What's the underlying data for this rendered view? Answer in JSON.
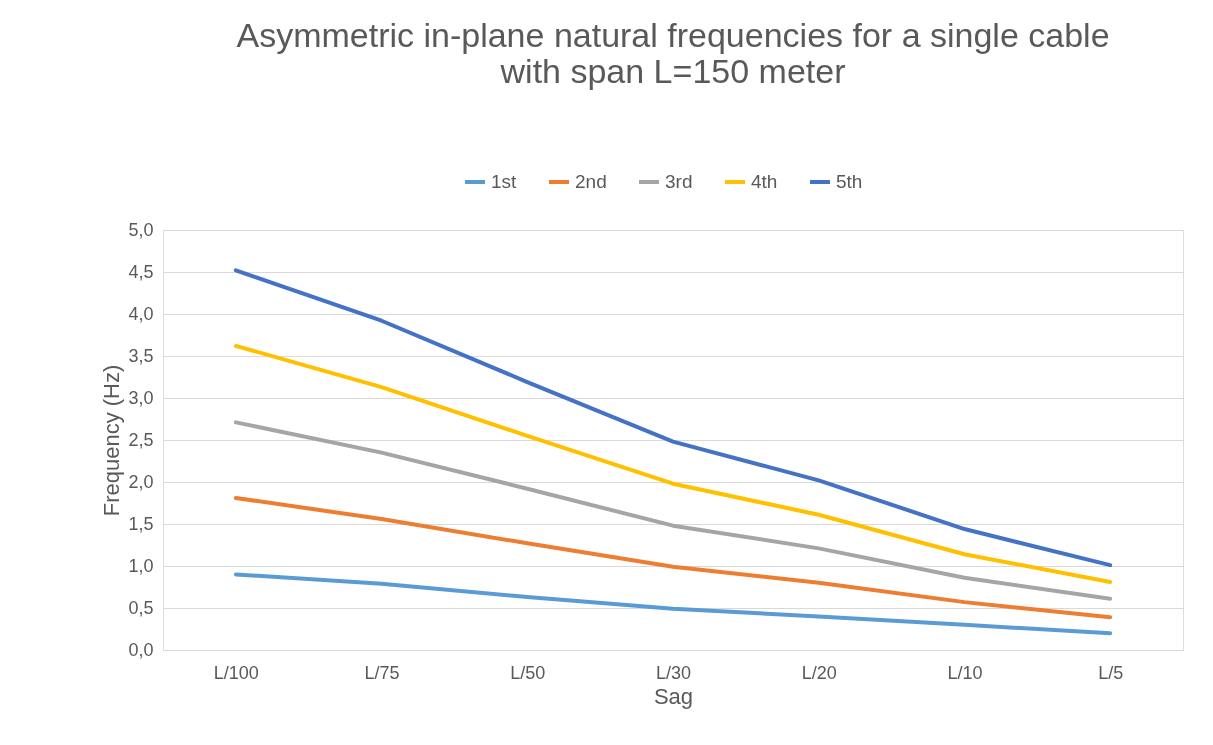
{
  "chart_data": {
    "type": "line",
    "title": "Asymmetric in-plane natural frequencies for a single cable\nwith span L=150 meter",
    "xlabel": "Sag",
    "ylabel": "Frequency (Hz)",
    "categories": [
      "L/100",
      "L/75",
      "L/50",
      "L/30",
      "L/20",
      "L/10",
      "L/5"
    ],
    "series": [
      {
        "name": "1st",
        "color": "#5b9bd5",
        "values": [
          0.9,
          0.79,
          0.63,
          0.49,
          0.4,
          0.3,
          0.2
        ]
      },
      {
        "name": "2nd",
        "color": "#ed7d31",
        "values": [
          1.81,
          1.56,
          1.27,
          0.99,
          0.8,
          0.57,
          0.39
        ]
      },
      {
        "name": "3rd",
        "color": "#a5a5a5",
        "values": [
          2.71,
          2.35,
          1.92,
          1.48,
          1.21,
          0.86,
          0.61
        ]
      },
      {
        "name": "4th",
        "color": "#ffc000",
        "values": [
          3.62,
          3.13,
          2.55,
          1.98,
          1.61,
          1.14,
          0.81
        ]
      },
      {
        "name": "5th",
        "color": "#4472c4",
        "values": [
          4.52,
          3.92,
          3.19,
          2.48,
          2.02,
          1.44,
          1.01
        ]
      }
    ],
    "ylim": [
      0,
      5
    ],
    "yticks": [
      {
        "value": 0,
        "label": "0,0"
      },
      {
        "value": 0.5,
        "label": "0,5"
      },
      {
        "value": 1,
        "label": "1,0"
      },
      {
        "value": 1.5,
        "label": "1,5"
      },
      {
        "value": 2,
        "label": "2,0"
      },
      {
        "value": 2.5,
        "label": "2,5"
      },
      {
        "value": 3,
        "label": "3,0"
      },
      {
        "value": 3.5,
        "label": "3,5"
      },
      {
        "value": 4,
        "label": "4,0"
      },
      {
        "value": 4.5,
        "label": "4,5"
      },
      {
        "value": 5,
        "label": "5,0"
      }
    ],
    "grid": "y",
    "legend": "top",
    "marker": "none",
    "line_style": "solid"
  }
}
